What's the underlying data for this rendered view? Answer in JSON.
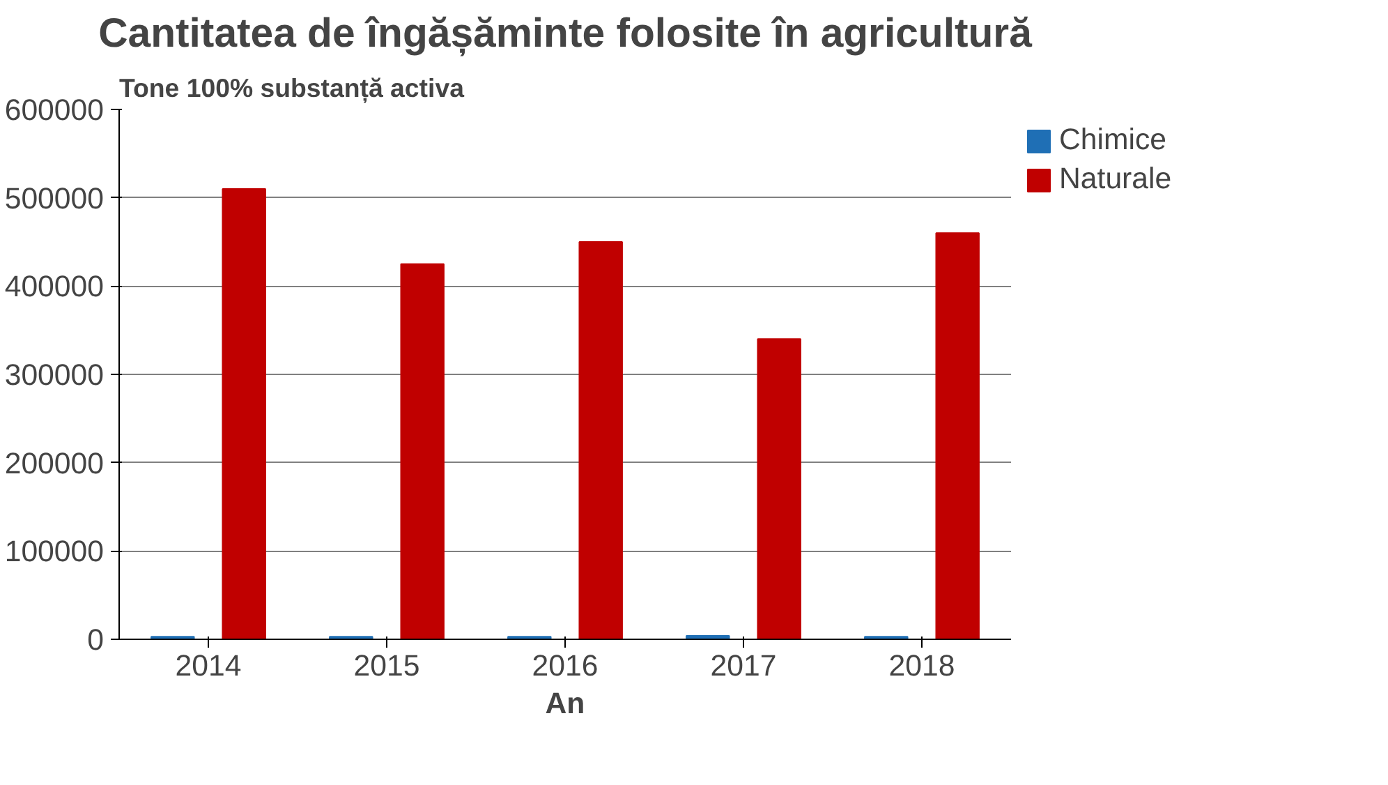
{
  "chart_data": {
    "type": "bar",
    "title": "Cantitatea de îngășăminte folosite în agricultură",
    "xlabel": "An",
    "ylabel": "Tone 100% substanță activa",
    "categories": [
      "2014",
      "2015",
      "2016",
      "2017",
      "2018"
    ],
    "series": [
      {
        "name": "Chimice",
        "color": "#1f6fb5",
        "values": [
          3000,
          3000,
          3000,
          4000,
          3000
        ]
      },
      {
        "name": "Naturale",
        "color": "#c00000",
        "values": [
          510000,
          425000,
          450000,
          340000,
          460000
        ]
      }
    ],
    "ylim": [
      0,
      600000
    ],
    "yticks": [
      0,
      100000,
      200000,
      300000,
      400000,
      500000,
      600000
    ],
    "grid": "y",
    "legend": "right"
  }
}
